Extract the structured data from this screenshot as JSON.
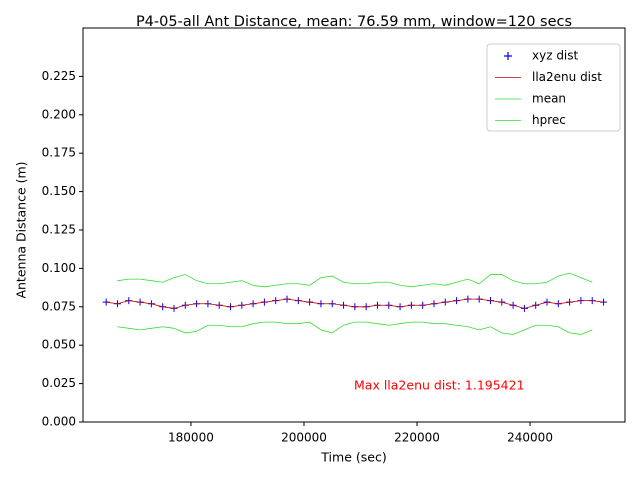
{
  "chart_data": {
    "type": "line",
    "title": "P4-05-all Ant Distance, mean: 76.59 mm, window=120 secs",
    "x_label": "Time (sec)",
    "y_label": "Antenna Distance (m)",
    "annotation": "Max lla2enu dist: 1.195421",
    "annotation_color": "#ff0000",
    "xlim": [
      160900,
      256800
    ],
    "ylim": [
      0,
      0.2565
    ],
    "xticks": [
      180000,
      200000,
      220000,
      240000
    ],
    "yticks": [
      {
        "value": 0,
        "label": "0.000"
      },
      0.025,
      {
        "value": 0.05,
        "label": "0.050"
      },
      0.075,
      {
        "value": 0.1,
        "label": "0.100"
      },
      0.125,
      {
        "value": 0.15,
        "label": "0.150"
      },
      0.175,
      {
        "value": 0.2,
        "label": "0.200"
      },
      0.225
    ],
    "legend": "upper right",
    "x": [
      165000,
      167000,
      169000,
      171000,
      173000,
      175000,
      177000,
      179000,
      181000,
      183000,
      185000,
      187000,
      189000,
      191000,
      193000,
      195000,
      197000,
      199000,
      201000,
      203000,
      205000,
      207000,
      209000,
      211000,
      213000,
      215000,
      217000,
      219000,
      221000,
      223000,
      225000,
      227000,
      229000,
      231000,
      233000,
      235000,
      237000,
      239000,
      241000,
      243000,
      245000,
      247000,
      249000,
      251000,
      253000
    ],
    "series": [
      {
        "name": "xyz dist",
        "color": "#0000ff",
        "marker": "+",
        "values": [
          0.078,
          0.077,
          0.079,
          0.078,
          0.077,
          0.075,
          0.074,
          0.076,
          0.077,
          0.077,
          0.076,
          0.075,
          0.076,
          0.077,
          0.078,
          0.079,
          0.08,
          0.079,
          0.078,
          0.077,
          0.077,
          0.076,
          0.075,
          0.075,
          0.076,
          0.076,
          0.075,
          0.076,
          0.076,
          0.077,
          0.078,
          0.079,
          0.08,
          0.08,
          0.079,
          0.078,
          0.076,
          0.074,
          0.076,
          0.078,
          0.077,
          0.078,
          0.079,
          0.079,
          0.078
        ]
      },
      {
        "name": "lla2enu dist",
        "color": "#c00000",
        "values": [
          0.078,
          0.077,
          0.079,
          0.078,
          0.077,
          0.075,
          0.074,
          0.076,
          0.077,
          0.077,
          0.076,
          0.075,
          0.076,
          0.077,
          0.078,
          0.079,
          0.08,
          0.079,
          0.078,
          0.077,
          0.077,
          0.076,
          0.075,
          0.075,
          0.076,
          0.076,
          0.075,
          0.076,
          0.076,
          0.077,
          0.078,
          0.079,
          0.08,
          0.08,
          0.079,
          0.078,
          0.076,
          0.074,
          0.076,
          0.078,
          0.077,
          0.078,
          0.079,
          0.079,
          0.078
        ]
      },
      {
        "name": "mean",
        "color": "#33dd33",
        "values": [
          null,
          0.092,
          0.093,
          0.093,
          0.092,
          0.091,
          0.094,
          0.096,
          0.092,
          0.09,
          0.09,
          0.091,
          0.092,
          0.089,
          0.088,
          0.089,
          0.09,
          0.09,
          0.089,
          0.094,
          0.095,
          0.091,
          0.09,
          0.09,
          0.091,
          0.091,
          0.089,
          0.088,
          0.089,
          0.09,
          0.089,
          0.091,
          0.093,
          0.09,
          0.096,
          0.096,
          0.092,
          0.09,
          0.09,
          0.091,
          0.095,
          0.097,
          0.094,
          0.091,
          null
        ]
      },
      {
        "name": "hprec",
        "color": "#33dd33",
        "values": [
          null,
          0.062,
          0.061,
          0.06,
          0.061,
          0.062,
          0.061,
          0.058,
          0.059,
          0.063,
          0.063,
          0.062,
          0.062,
          0.064,
          0.065,
          0.065,
          0.064,
          0.064,
          0.065,
          0.06,
          0.058,
          0.063,
          0.065,
          0.065,
          0.064,
          0.063,
          0.064,
          0.065,
          0.065,
          0.064,
          0.064,
          0.063,
          0.062,
          0.06,
          0.062,
          0.058,
          0.057,
          0.06,
          0.063,
          0.063,
          0.062,
          0.058,
          0.057,
          0.06,
          null
        ]
      }
    ]
  }
}
